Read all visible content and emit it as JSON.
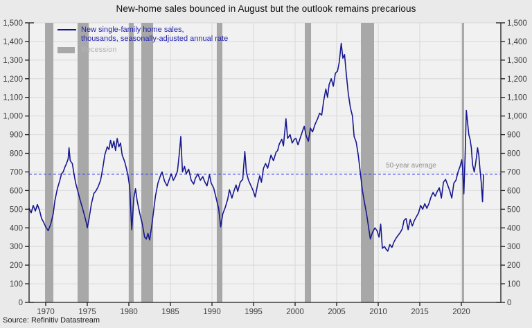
{
  "title": "New-home sales bounced in August but the outlook remains precarious",
  "source": "Source: Refinitiv Datastream",
  "legend": {
    "series_label_line1": "New single-family home sales,",
    "series_label_line2": "thousands, seasonally-adjusted annual rate",
    "recession_label": "Recession"
  },
  "average_line": {
    "label": "50-year average",
    "value": 688
  },
  "colors": {
    "line": "#17178f",
    "average": "#3a3af0",
    "recession": "#a8a8a8",
    "grid": "#d8d8d8",
    "plot_bg": "#f1f1f1",
    "page_bg": "#eaeaea",
    "axis": "#1a1a1a",
    "tick_label": "#3d3d3d"
  },
  "chart_data": {
    "type": "line",
    "title": "New-home sales bounced in August but the outlook remains precarious",
    "xlabel": "",
    "ylabel": "New single-family home sales, thousands, seasonally-adjusted annual rate",
    "x_range": [
      1968,
      2024.75
    ],
    "y_range": [
      0,
      1500
    ],
    "grid": true,
    "legend_position": "top-left",
    "y_ticks": {
      "values": [
        0,
        100,
        200,
        300,
        400,
        500,
        600,
        700,
        800,
        900,
        1000,
        1100,
        1200,
        1300,
        1400,
        1500
      ],
      "labels": [
        "0",
        "100",
        "200",
        "300",
        "400",
        "500",
        "600",
        "700",
        "800",
        "900",
        "1,000",
        "1,100",
        "1,200",
        "1,300",
        "1,400",
        "1,500"
      ]
    },
    "x_ticks": {
      "values": [
        1970,
        1975,
        1980,
        1985,
        1990,
        1995,
        2000,
        2005,
        2010,
        2015,
        2020
      ],
      "labels": [
        "1970",
        "1975",
        "1980",
        "1985",
        "1990",
        "1995",
        "2000",
        "2005",
        "2010",
        "2015",
        "2020"
      ]
    },
    "average": 688,
    "recessions": [
      [
        1969.92,
        1970.92
      ],
      [
        1973.83,
        1975.17
      ],
      [
        1980.0,
        1980.58
      ],
      [
        1981.5,
        1982.92
      ],
      [
        1990.58,
        1991.25
      ],
      [
        2001.17,
        2001.92
      ],
      [
        2007.92,
        2009.5
      ],
      [
        2020.08,
        2020.33
      ]
    ],
    "series": [
      {
        "name": "New single-family home sales, thousands, seasonally-adjusted annual rate",
        "points": [
          [
            1968.0,
            505
          ],
          [
            1968.25,
            480
          ],
          [
            1968.5,
            520
          ],
          [
            1968.75,
            490
          ],
          [
            1969.0,
            525
          ],
          [
            1969.25,
            495
          ],
          [
            1969.5,
            450
          ],
          [
            1969.75,
            430
          ],
          [
            1970.0,
            405
          ],
          [
            1970.3,
            385
          ],
          [
            1970.6,
            420
          ],
          [
            1970.9,
            475
          ],
          [
            1971.1,
            545
          ],
          [
            1971.4,
            610
          ],
          [
            1971.7,
            655
          ],
          [
            1971.9,
            690
          ],
          [
            1972.1,
            700
          ],
          [
            1972.3,
            725
          ],
          [
            1972.5,
            745
          ],
          [
            1972.7,
            770
          ],
          [
            1972.8,
            830
          ],
          [
            1972.95,
            760
          ],
          [
            1973.2,
            745
          ],
          [
            1973.4,
            690
          ],
          [
            1973.6,
            640
          ],
          [
            1973.9,
            590
          ],
          [
            1974.1,
            555
          ],
          [
            1974.4,
            510
          ],
          [
            1974.7,
            460
          ],
          [
            1974.9,
            425
          ],
          [
            1975.0,
            400
          ],
          [
            1975.2,
            445
          ],
          [
            1975.5,
            530
          ],
          [
            1975.8,
            585
          ],
          [
            1976.0,
            595
          ],
          [
            1976.3,
            620
          ],
          [
            1976.6,
            655
          ],
          [
            1976.9,
            730
          ],
          [
            1977.1,
            790
          ],
          [
            1977.4,
            835
          ],
          [
            1977.6,
            820
          ],
          [
            1977.8,
            870
          ],
          [
            1978.0,
            830
          ],
          [
            1978.2,
            865
          ],
          [
            1978.4,
            815
          ],
          [
            1978.6,
            880
          ],
          [
            1978.8,
            835
          ],
          [
            1979.0,
            855
          ],
          [
            1979.2,
            790
          ],
          [
            1979.5,
            755
          ],
          [
            1979.7,
            720
          ],
          [
            1979.9,
            680
          ],
          [
            1980.1,
            620
          ],
          [
            1980.35,
            390
          ],
          [
            1980.6,
            560
          ],
          [
            1980.8,
            610
          ],
          [
            1981.0,
            545
          ],
          [
            1981.3,
            480
          ],
          [
            1981.6,
            425
          ],
          [
            1981.9,
            350
          ],
          [
            1982.1,
            340
          ],
          [
            1982.3,
            370
          ],
          [
            1982.5,
            335
          ],
          [
            1982.75,
            410
          ],
          [
            1982.95,
            480
          ],
          [
            1983.2,
            570
          ],
          [
            1983.5,
            640
          ],
          [
            1983.8,
            680
          ],
          [
            1984.0,
            700
          ],
          [
            1984.3,
            650
          ],
          [
            1984.6,
            625
          ],
          [
            1984.9,
            665
          ],
          [
            1985.1,
            690
          ],
          [
            1985.35,
            655
          ],
          [
            1985.6,
            675
          ],
          [
            1985.85,
            705
          ],
          [
            1986.1,
            810
          ],
          [
            1986.25,
            890
          ],
          [
            1986.45,
            700
          ],
          [
            1986.7,
            730
          ],
          [
            1986.9,
            690
          ],
          [
            1987.2,
            715
          ],
          [
            1987.5,
            655
          ],
          [
            1987.8,
            635
          ],
          [
            1988.0,
            665
          ],
          [
            1988.3,
            690
          ],
          [
            1988.6,
            655
          ],
          [
            1988.9,
            675
          ],
          [
            1989.1,
            650
          ],
          [
            1989.4,
            625
          ],
          [
            1989.7,
            685
          ],
          [
            1989.9,
            640
          ],
          [
            1990.2,
            615
          ],
          [
            1990.5,
            560
          ],
          [
            1990.8,
            505
          ],
          [
            1991.05,
            405
          ],
          [
            1991.3,
            475
          ],
          [
            1991.6,
            510
          ],
          [
            1991.9,
            555
          ],
          [
            1992.1,
            605
          ],
          [
            1992.4,
            560
          ],
          [
            1992.7,
            605
          ],
          [
            1992.9,
            630
          ],
          [
            1993.1,
            595
          ],
          [
            1993.4,
            645
          ],
          [
            1993.7,
            660
          ],
          [
            1993.95,
            810
          ],
          [
            1994.15,
            695
          ],
          [
            1994.4,
            655
          ],
          [
            1994.7,
            625
          ],
          [
            1994.95,
            600
          ],
          [
            1995.2,
            565
          ],
          [
            1995.5,
            635
          ],
          [
            1995.75,
            680
          ],
          [
            1995.95,
            645
          ],
          [
            1996.2,
            720
          ],
          [
            1996.45,
            745
          ],
          [
            1996.7,
            720
          ],
          [
            1996.9,
            755
          ],
          [
            1997.1,
            790
          ],
          [
            1997.4,
            760
          ],
          [
            1997.7,
            805
          ],
          [
            1997.9,
            815
          ],
          [
            1998.1,
            850
          ],
          [
            1998.4,
            875
          ],
          [
            1998.6,
            840
          ],
          [
            1998.9,
            985
          ],
          [
            1999.1,
            880
          ],
          [
            1999.4,
            900
          ],
          [
            1999.65,
            855
          ],
          [
            1999.9,
            875
          ],
          [
            2000.1,
            880
          ],
          [
            2000.35,
            845
          ],
          [
            2000.6,
            880
          ],
          [
            2000.9,
            920
          ],
          [
            2001.1,
            945
          ],
          [
            2001.35,
            890
          ],
          [
            2001.6,
            865
          ],
          [
            2001.85,
            935
          ],
          [
            2002.1,
            915
          ],
          [
            2002.4,
            955
          ],
          [
            2002.7,
            985
          ],
          [
            2002.95,
            1015
          ],
          [
            2003.2,
            1005
          ],
          [
            2003.45,
            1085
          ],
          [
            2003.7,
            1145
          ],
          [
            2003.9,
            1100
          ],
          [
            2004.1,
            1170
          ],
          [
            2004.35,
            1200
          ],
          [
            2004.6,
            1160
          ],
          [
            2004.85,
            1230
          ],
          [
            2005.1,
            1240
          ],
          [
            2005.3,
            1285
          ],
          [
            2005.55,
            1390
          ],
          [
            2005.75,
            1310
          ],
          [
            2005.95,
            1330
          ],
          [
            2006.15,
            1230
          ],
          [
            2006.4,
            1120
          ],
          [
            2006.65,
            1045
          ],
          [
            2006.9,
            1000
          ],
          [
            2007.1,
            890
          ],
          [
            2007.35,
            860
          ],
          [
            2007.6,
            790
          ],
          [
            2007.85,
            695
          ],
          [
            2008.1,
            600
          ],
          [
            2008.35,
            535
          ],
          [
            2008.6,
            475
          ],
          [
            2008.85,
            400
          ],
          [
            2009.05,
            340
          ],
          [
            2009.3,
            375
          ],
          [
            2009.6,
            400
          ],
          [
            2009.85,
            385
          ],
          [
            2010.1,
            350
          ],
          [
            2010.3,
            420
          ],
          [
            2010.5,
            290
          ],
          [
            2010.75,
            300
          ],
          [
            2010.95,
            285
          ],
          [
            2011.15,
            275
          ],
          [
            2011.4,
            310
          ],
          [
            2011.65,
            295
          ],
          [
            2011.9,
            325
          ],
          [
            2012.15,
            345
          ],
          [
            2012.4,
            360
          ],
          [
            2012.65,
            375
          ],
          [
            2012.9,
            395
          ],
          [
            2013.1,
            440
          ],
          [
            2013.35,
            450
          ],
          [
            2013.6,
            390
          ],
          [
            2013.85,
            445
          ],
          [
            2014.1,
            410
          ],
          [
            2014.35,
            440
          ],
          [
            2014.6,
            460
          ],
          [
            2014.85,
            480
          ],
          [
            2015.1,
            520
          ],
          [
            2015.35,
            500
          ],
          [
            2015.6,
            530
          ],
          [
            2015.85,
            505
          ],
          [
            2016.1,
            530
          ],
          [
            2016.35,
            565
          ],
          [
            2016.6,
            590
          ],
          [
            2016.85,
            570
          ],
          [
            2017.1,
            595
          ],
          [
            2017.35,
            615
          ],
          [
            2017.6,
            560
          ],
          [
            2017.85,
            645
          ],
          [
            2018.1,
            660
          ],
          [
            2018.35,
            630
          ],
          [
            2018.6,
            600
          ],
          [
            2018.85,
            560
          ],
          [
            2019.1,
            640
          ],
          [
            2019.35,
            655
          ],
          [
            2019.6,
            700
          ],
          [
            2019.85,
            730
          ],
          [
            2020.05,
            765
          ],
          [
            2020.15,
            720
          ],
          [
            2020.3,
            582
          ],
          [
            2020.45,
            780
          ],
          [
            2020.6,
            1030
          ],
          [
            2020.75,
            965
          ],
          [
            2020.9,
            900
          ],
          [
            2021.05,
            875
          ],
          [
            2021.2,
            830
          ],
          [
            2021.35,
            740
          ],
          [
            2021.55,
            700
          ],
          [
            2021.7,
            740
          ],
          [
            2021.85,
            790
          ],
          [
            2021.95,
            830
          ],
          [
            2022.1,
            790
          ],
          [
            2022.25,
            710
          ],
          [
            2022.4,
            640
          ],
          [
            2022.55,
            540
          ],
          [
            2022.67,
            685
          ]
        ]
      }
    ]
  }
}
